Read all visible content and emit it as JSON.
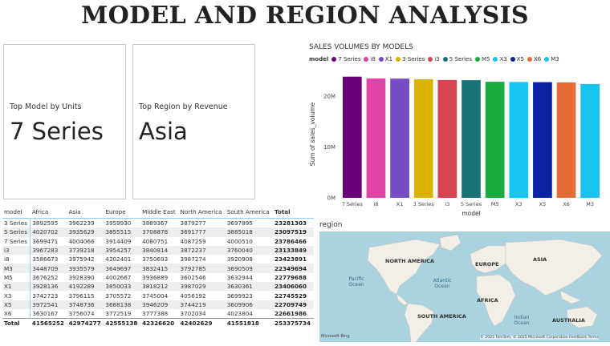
{
  "title": "MODEL AND REGION ANALYSIS",
  "cards": {
    "model": {
      "label": "Top Model by Units",
      "value": "7 Series"
    },
    "region": {
      "label": "Top Region by Revenue",
      "value": "Asia"
    }
  },
  "chart_data": {
    "type": "bar",
    "title": "SALES VOLUMES BY MODELS",
    "legend_title": "model",
    "legend_placement": "top-left",
    "xlabel": "model",
    "ylabel": "Sum of sales_volume",
    "ylim": [
      0,
      25000000
    ],
    "yticks": [
      "0M",
      "10M",
      "20M"
    ],
    "ytick_values": [
      0,
      10000000,
      20000000
    ],
    "grid": false,
    "categories": [
      "7 Series",
      "i8",
      "X1",
      "3 Series",
      "i3",
      "5 Series",
      "M5",
      "X3",
      "X5",
      "X6",
      "M3"
    ],
    "values": [
      23786466,
      23423891,
      23406060,
      23281303,
      23133849,
      23097519,
      22779688,
      22745529,
      22709749,
      22661986,
      22349694
    ],
    "colors": [
      "#6b007b",
      "#e044a7",
      "#744ec2",
      "#d9b300",
      "#d64550",
      "#197278",
      "#1aab40",
      "#15c6f4",
      "#0b22a5",
      "#e66c37",
      "#19c3f0"
    ]
  },
  "table": {
    "columns": [
      "model",
      "Africa",
      "Asia",
      "Europe",
      "Middle East",
      "North America",
      "South America",
      "Total"
    ],
    "rows": [
      [
        "3 Series",
        "3892595",
        "3962239",
        "3959930",
        "3889367",
        "3879277",
        "3697895",
        "23281303"
      ],
      [
        "5 Series",
        "4020702",
        "3935629",
        "3855515",
        "3708878",
        "3691777",
        "3885018",
        "23097519"
      ],
      [
        "7 Series",
        "3699471",
        "4004066",
        "3914409",
        "4080751",
        "4087259",
        "4000510",
        "23786466"
      ],
      [
        "i3",
        "3967283",
        "3739218",
        "3954257",
        "3840814",
        "3872237",
        "3760040",
        "23133849"
      ],
      [
        "i8",
        "3586673",
        "3975942",
        "4202401",
        "3750693",
        "3987274",
        "3920908",
        "23423891"
      ],
      [
        "M3",
        "3448709",
        "3935579",
        "3649697",
        "3832415",
        "3792785",
        "3690509",
        "22349694"
      ],
      [
        "M5",
        "3676252",
        "3928390",
        "4002667",
        "3936889",
        "3602546",
        "3632944",
        "22779688"
      ],
      [
        "X1",
        "3928136",
        "4192289",
        "3850033",
        "3818212",
        "3987029",
        "3630361",
        "23406060"
      ],
      [
        "X3",
        "3742723",
        "3796115",
        "3705572",
        "3745004",
        "4056192",
        "3699923",
        "22745529"
      ],
      [
        "X5",
        "3972541",
        "3748736",
        "3688138",
        "3946209",
        "3744219",
        "3609906",
        "22709749"
      ],
      [
        "X6",
        "3630167",
        "3756074",
        "3772519",
        "3777388",
        "3702034",
        "4023804",
        "22661986"
      ]
    ],
    "total": [
      "Total",
      "41565252",
      "42974277",
      "42555138",
      "42326620",
      "42402629",
      "41551818",
      "253375734"
    ]
  },
  "map": {
    "label": "region",
    "continents": [
      "NORTH AMERICA",
      "EUROPE",
      "ASIA",
      "AFRICA",
      "SOUTH AMERICA",
      "AUSTRALIA"
    ],
    "oceans": [
      "Pacific Ocean",
      "Atlantic Ocean",
      "Indian Ocean"
    ],
    "attribution": "© 2025 TomTom, © 2025 Microsoft Corporation  Feedback  Terms",
    "brand": "Microsoft Bing"
  }
}
